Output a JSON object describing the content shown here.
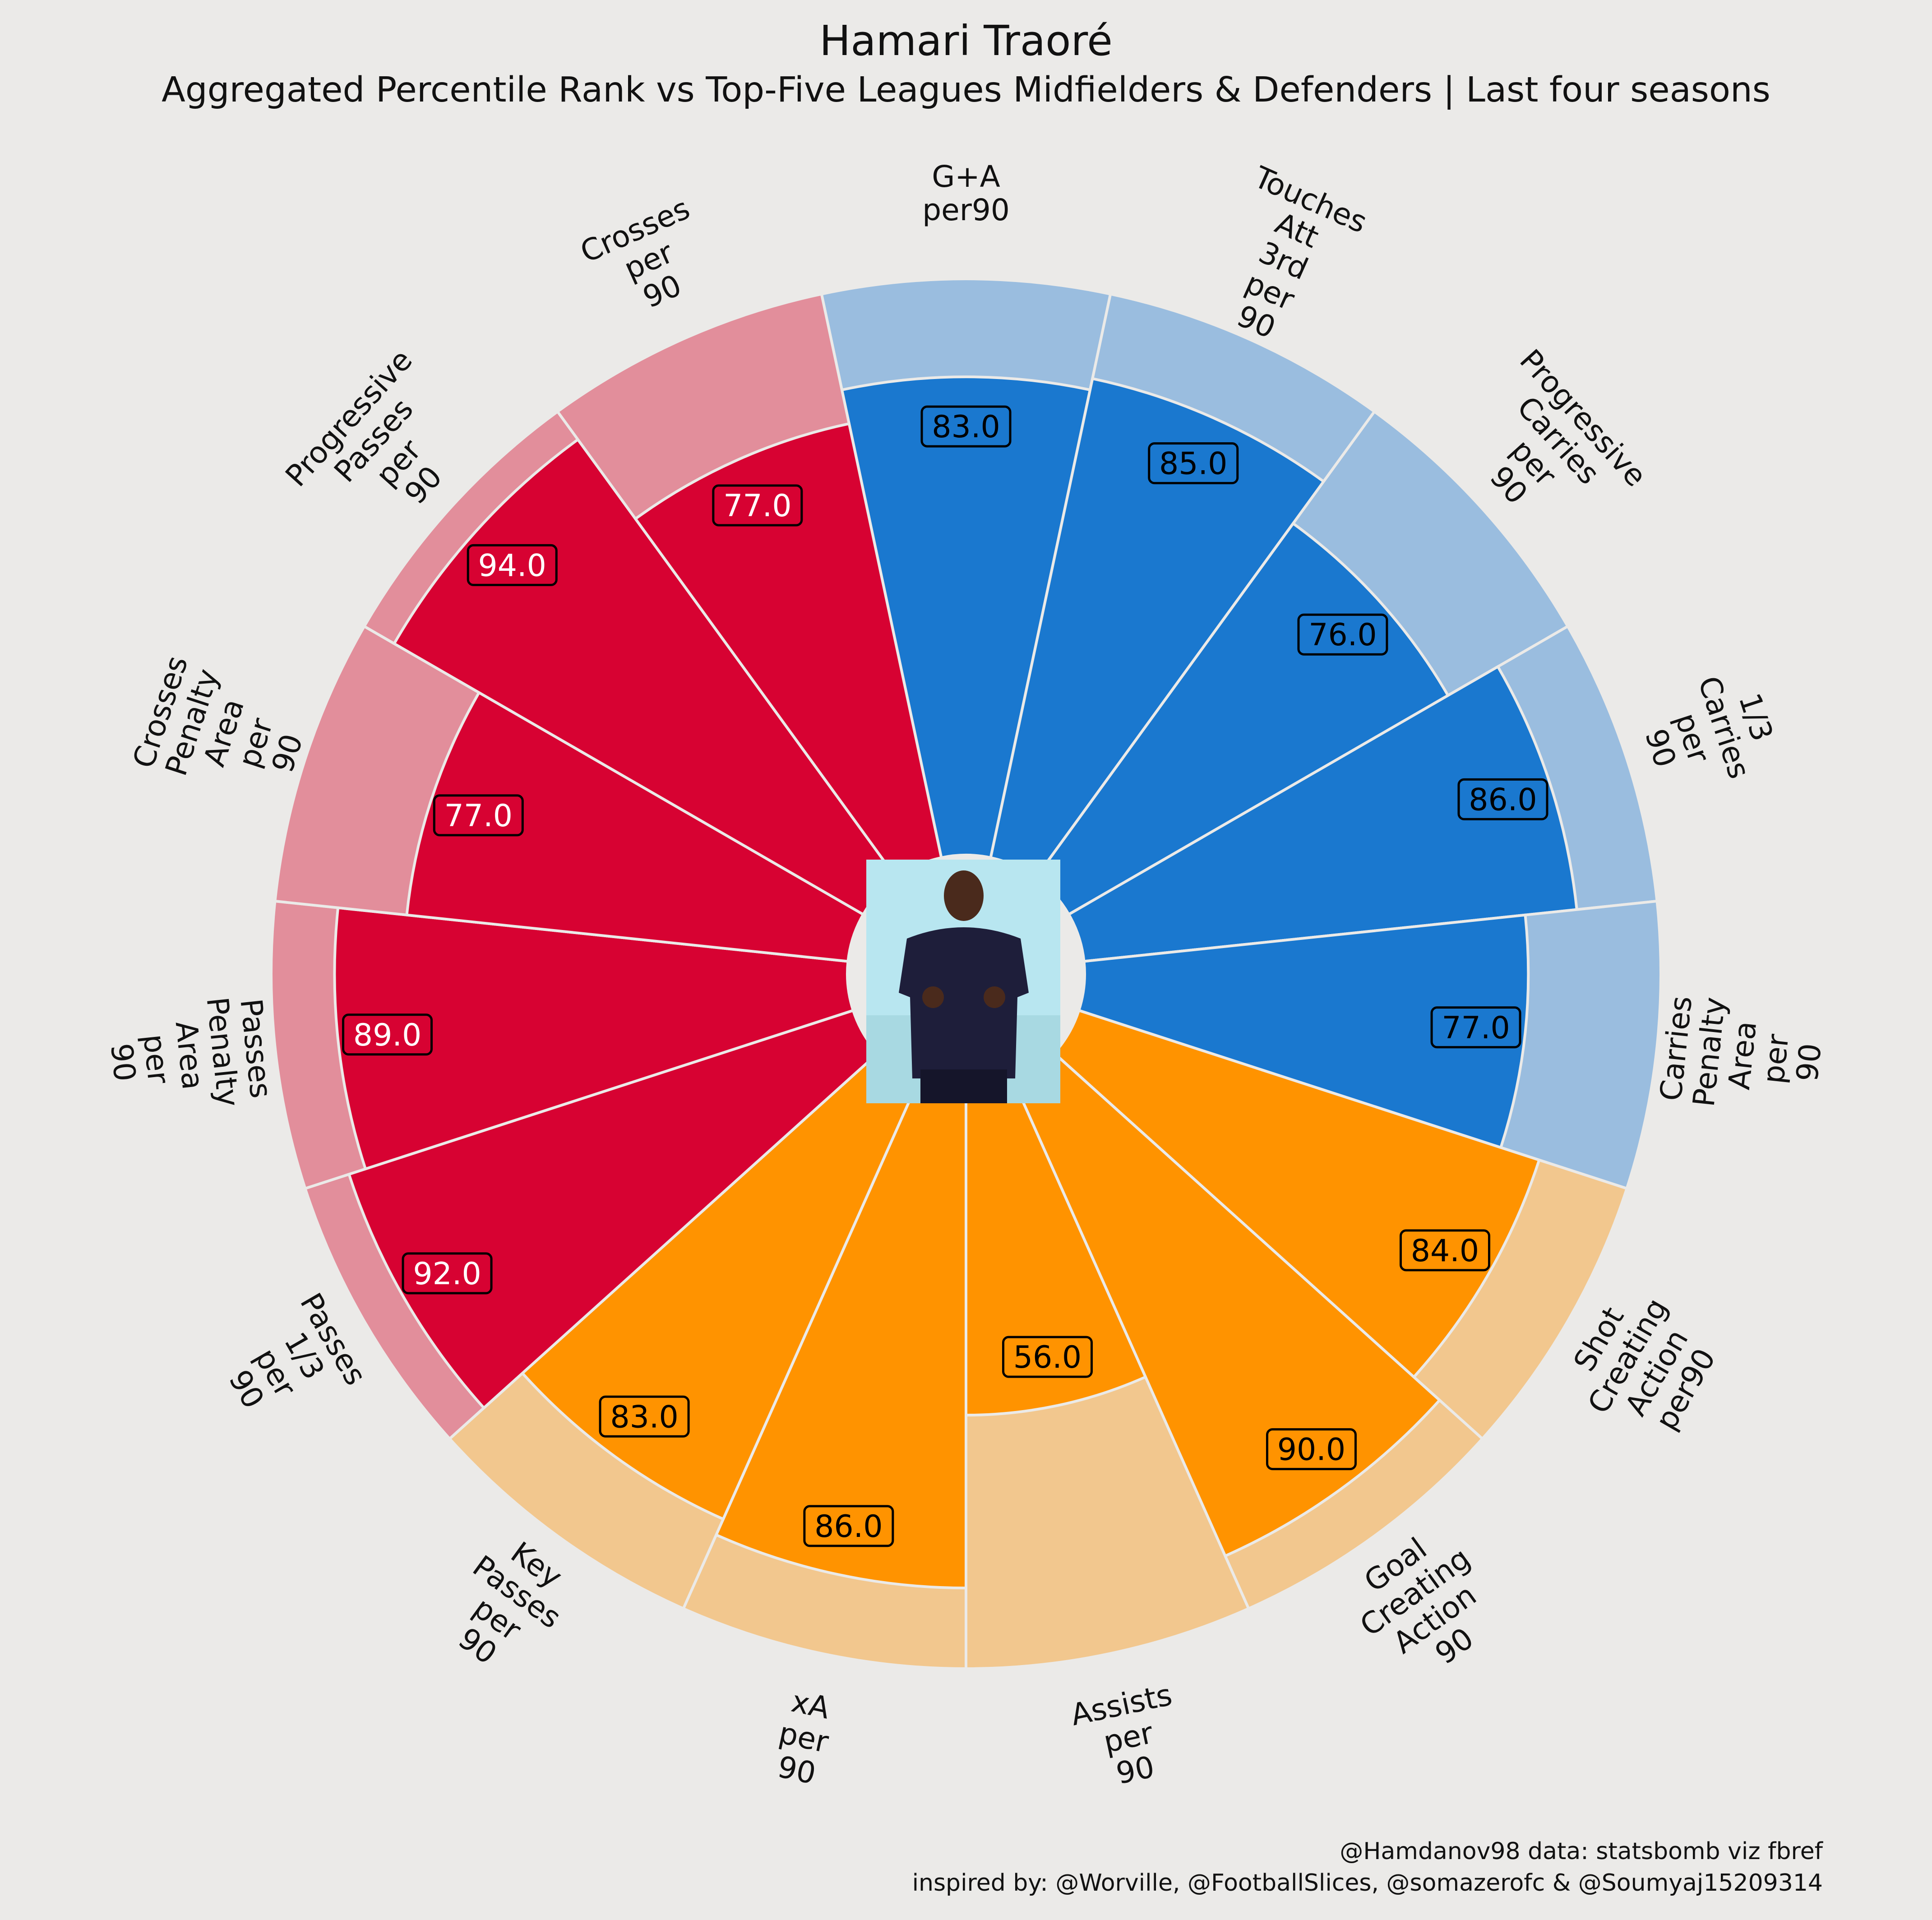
{
  "chart_data": {
    "type": "pizza",
    "title": "Hamari Traoré",
    "subtitle": "Aggregated Percentile Rank vs Top-Five Leagues Midfielders & Defenders | Last four seasons",
    "credits": [
      "@Hamdanov98 data: statsbomb viz fbref",
      "inspired by: @Worville, @FootballSlices, @somazerofc & @Soumyaj15209314"
    ],
    "value_range": [
      0,
      100
    ],
    "groups": [
      {
        "name": "passing",
        "color": "#D70232",
        "background": "#E28E9B",
        "value_text_color": "#FFFFFF"
      },
      {
        "name": "attacking",
        "color": "#1A78CF",
        "background": "#9ABDDF",
        "value_text_color": "#000000"
      },
      {
        "name": "creating",
        "color": "#FF9300",
        "background": "#F2C78E",
        "value_text_color": "#000000"
      }
    ],
    "slices": [
      {
        "label": [
          "G+A",
          "per90"
        ],
        "value": 83.0,
        "group": 1
      },
      {
        "label": [
          "Touches",
          "Att",
          "3rd",
          "per",
          "90"
        ],
        "value": 85.0,
        "group": 1
      },
      {
        "label": [
          "Progressive",
          "Carries",
          "per",
          "90"
        ],
        "value": 76.0,
        "group": 1
      },
      {
        "label": [
          "1/3",
          "Carries",
          "per",
          "90"
        ],
        "value": 86.0,
        "group": 1
      },
      {
        "label": [
          "Carries",
          "Penalty",
          "Area",
          "per",
          "90"
        ],
        "value": 77.0,
        "group": 1
      },
      {
        "label": [
          "Shot",
          "Creating",
          "Action",
          "per90"
        ],
        "value": 84.0,
        "group": 2
      },
      {
        "label": [
          "Goal",
          "Creating",
          "Action",
          "90"
        ],
        "value": 90.0,
        "group": 2
      },
      {
        "label": [
          "Assists",
          "per",
          "90"
        ],
        "value": 56.0,
        "group": 2
      },
      {
        "label": [
          "xA",
          "per",
          "90"
        ],
        "value": 86.0,
        "group": 2
      },
      {
        "label": [
          "Key",
          "Passes",
          "per",
          "90"
        ],
        "value": 83.0,
        "group": 2
      },
      {
        "label": [
          "Passes",
          "1/3",
          "per",
          "90"
        ],
        "value": 92.0,
        "group": 0
      },
      {
        "label": [
          "Passes",
          "Penalty",
          "Area",
          "per",
          "90"
        ],
        "value": 89.0,
        "group": 0
      },
      {
        "label": [
          "Crosses",
          "Penalty",
          "Area",
          "per",
          "90"
        ],
        "value": 77.0,
        "group": 0
      },
      {
        "label": [
          "Progressive",
          "Passes",
          "per",
          "90"
        ],
        "value": 94.0,
        "group": 0
      },
      {
        "label": [
          "Crosses",
          "per",
          "90"
        ],
        "value": 77.0,
        "group": 0
      }
    ]
  }
}
